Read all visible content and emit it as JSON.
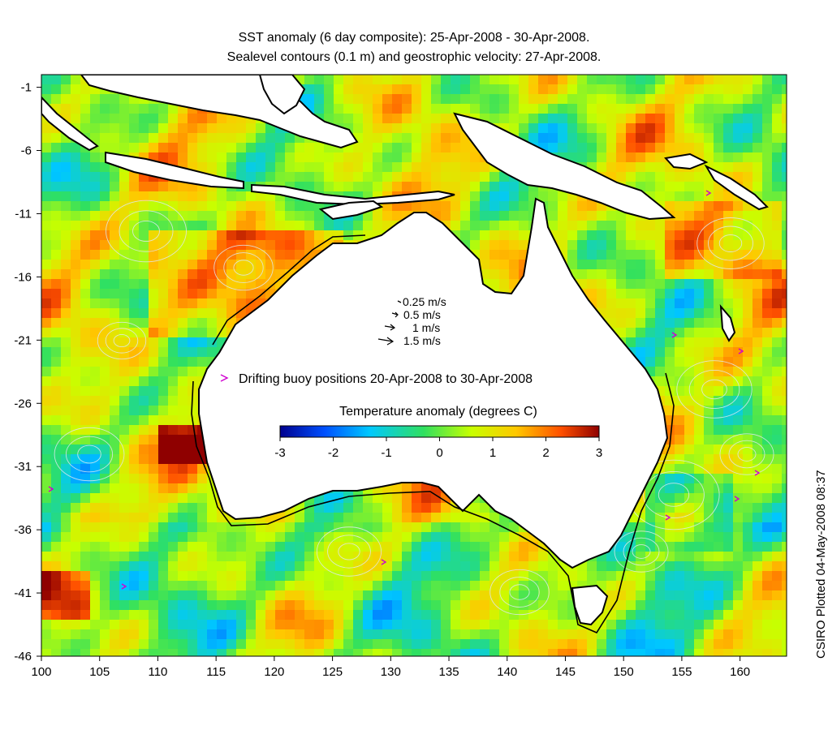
{
  "title_line1": "SST anomaly (6 day composite): 25-Apr-2008 - 30-Apr-2008.",
  "title_line2": "Sealevel contours (0.1 m) and geostrophic velocity: 27-Apr-2008.",
  "x_ticks": [
    "100",
    "105",
    "110",
    "115",
    "120",
    "125",
    "130",
    "135",
    "140",
    "145",
    "150",
    "155",
    "160"
  ],
  "y_ticks": [
    "-1",
    "-6",
    "-11",
    "-16",
    "-21",
    "-26",
    "-31",
    "-36",
    "-41",
    "-46"
  ],
  "velocity_legend": [
    "0.25 m/s",
    "0.5 m/s",
    "1 m/s",
    "1.5 m/s"
  ],
  "buoy_legend": "Drifting buoy positions 20-Apr-2008 to 30-Apr-2008",
  "colorbar": {
    "title": "Temperature anomaly (degrees C)",
    "ticks": [
      "-3",
      "-2",
      "-1",
      "0",
      "1",
      "2",
      "3"
    ],
    "range": [
      -3,
      3
    ],
    "colors": [
      "#00008f",
      "#0050ff",
      "#00c8ff",
      "#30e060",
      "#c8ff00",
      "#ffc800",
      "#ff5000",
      "#8f0000"
    ]
  },
  "credit": "CSIRO Plotted 04-May-2008 08:37",
  "map": {
    "lon_range": [
      100,
      164
    ],
    "lat_range": [
      -46,
      0
    ],
    "land_color": "#ffffff",
    "coast_color": "#000000",
    "contour_color": "#dfe9ee",
    "buoy_color": "#d000d0"
  }
}
